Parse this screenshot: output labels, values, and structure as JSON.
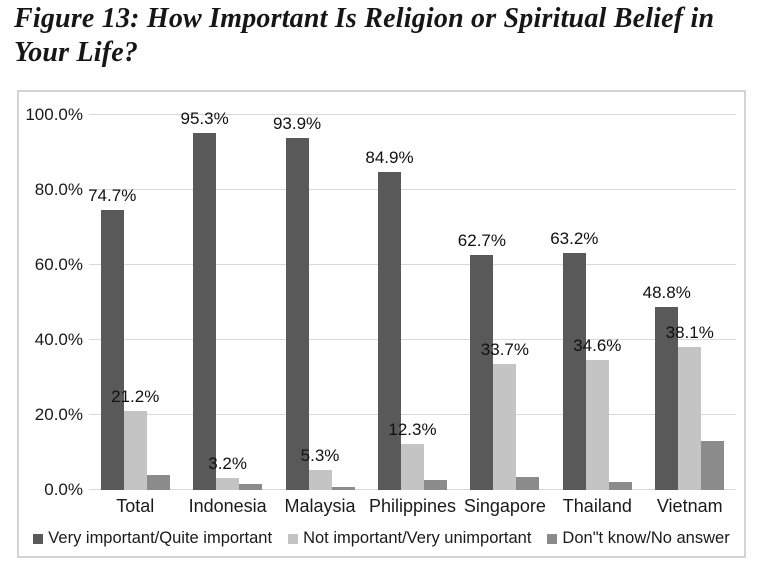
{
  "title": "Figure 13: How Important Is Religion or Spiritual Belief in Your Life?",
  "colors": {
    "series_dark": "#595959",
    "series_light": "#c4c4c4",
    "series_medium": "#8b8b8b",
    "gridline": "#d9d9d9",
    "chart_border": "#d4d4d4",
    "text": "#1a1a1a",
    "background": "#ffffff"
  },
  "chart_data": {
    "type": "bar",
    "title": "Figure 13: How Important Is Religion or Spiritual Belief in Your Life?",
    "categories": [
      "Total",
      "Indonesia",
      "Malaysia",
      "Philippines",
      "Singapore",
      "Thailand",
      "Vietnam"
    ],
    "series": [
      {
        "name": "Very important/Quite important",
        "color": "#595959",
        "values": [
          74.7,
          95.3,
          93.9,
          84.9,
          62.7,
          63.2,
          48.8
        ],
        "labels": [
          "74.7%",
          "95.3%",
          "93.9%",
          "84.9%",
          "62.7%",
          "63.2%",
          "48.8%"
        ]
      },
      {
        "name": "Not important/Very unimportant",
        "color": "#c4c4c4",
        "values": [
          21.2,
          3.2,
          5.3,
          12.3,
          33.7,
          34.6,
          38.1
        ],
        "labels": [
          "21.2%",
          "3.2%",
          "5.3%",
          "12.3%",
          "33.7%",
          "34.6%",
          "38.1%"
        ]
      },
      {
        "name": "Don\"t know/No answer",
        "color": "#8b8b8b",
        "values": [
          4.1,
          1.5,
          0.8,
          2.8,
          3.6,
          2.2,
          13.1
        ],
        "labels": null,
        "labels_shown": false,
        "values_estimated_from_bar_heights": true
      }
    ],
    "y_axis": {
      "ticks": [
        "100.0%",
        "80.0%",
        "60.0%",
        "40.0%",
        "20.0%",
        "0.0%"
      ],
      "min": 0,
      "max": 100,
      "step": 20
    },
    "xlabel": "",
    "ylabel": "",
    "grid": true,
    "legend_position": "bottom"
  }
}
